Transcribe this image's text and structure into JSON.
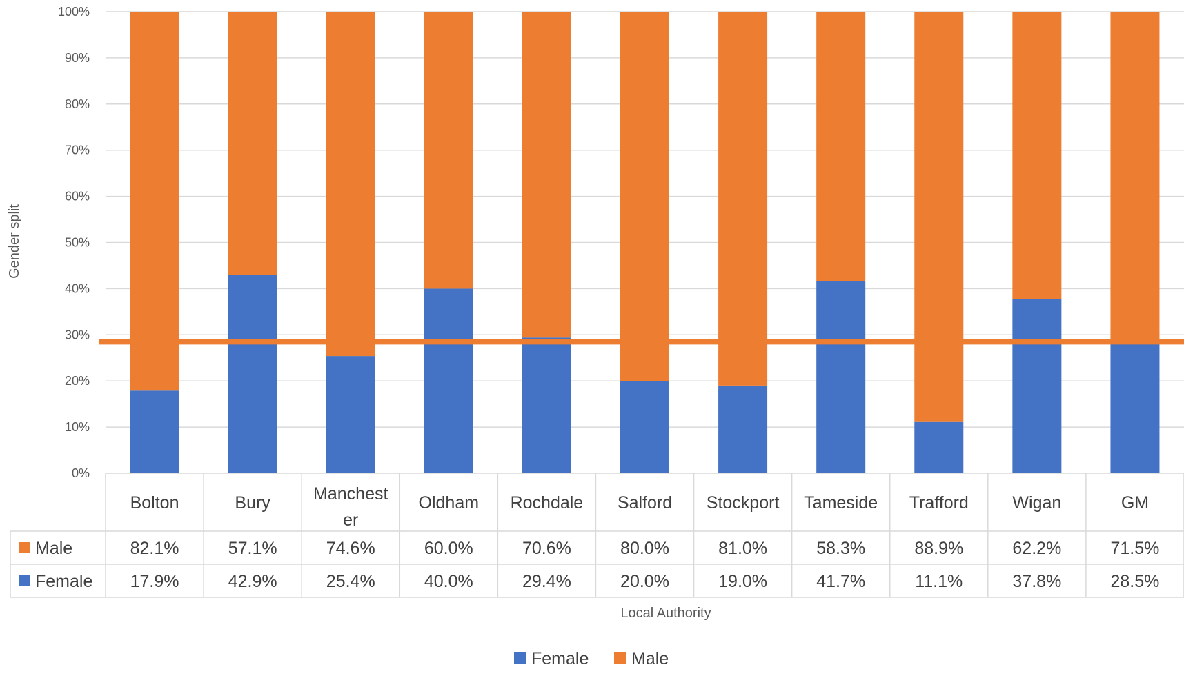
{
  "chart_data": {
    "type": "bar",
    "stacked": true,
    "percent_stacked": true,
    "categories": [
      "Bolton",
      "Bury",
      "Manchester",
      "Oldham",
      "Rochdale",
      "Salford",
      "Stockport",
      "Tameside",
      "Trafford",
      "Wigan",
      "GM"
    ],
    "series": [
      {
        "name": "Female",
        "color": "#4472C4",
        "values": [
          17.9,
          42.9,
          25.4,
          40.0,
          29.4,
          20.0,
          19.0,
          41.7,
          11.1,
          37.8,
          28.5
        ],
        "labels": [
          "17.9%",
          "42.9%",
          "25.4%",
          "40.0%",
          "29.4%",
          "20.0%",
          "19.0%",
          "41.7%",
          "11.1%",
          "37.8%",
          "28.5%"
        ]
      },
      {
        "name": "Male",
        "color": "#ED7D31",
        "values": [
          82.1,
          57.1,
          74.6,
          60.0,
          70.6,
          80.0,
          81.0,
          58.3,
          88.9,
          62.2,
          71.5
        ],
        "labels": [
          "82.1%",
          "57.1%",
          "74.6%",
          "60.0%",
          "70.6%",
          "80.0%",
          "81.0%",
          "58.3%",
          "88.9%",
          "62.2%",
          "71.5%"
        ]
      }
    ],
    "reference_line": {
      "value": 28.5,
      "color": "#ED7D31"
    },
    "ylabel": "Gender split",
    "xlabel": "Local Authority",
    "ylim": [
      0,
      100
    ],
    "yticks": [
      "0%",
      "10%",
      "20%",
      "30%",
      "40%",
      "50%",
      "60%",
      "70%",
      "80%",
      "90%",
      "100%"
    ],
    "grid": true,
    "data_table": true,
    "legend": {
      "position": "bottom",
      "entries": [
        "Female",
        "Male"
      ]
    }
  }
}
